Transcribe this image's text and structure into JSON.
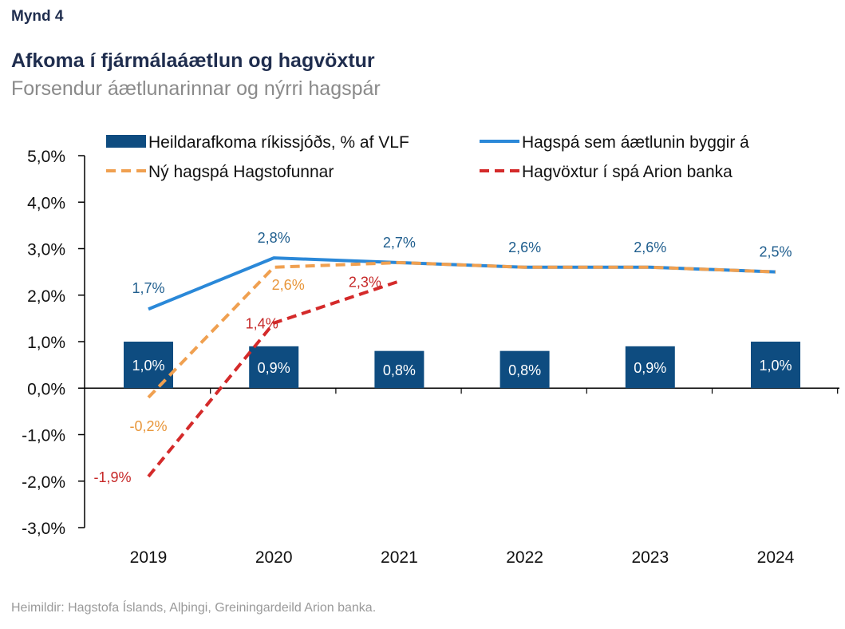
{
  "header": {
    "figure_label": "Mynd 4",
    "title": "Afkoma í fjármálaáætlun og hagvöxtur",
    "subtitle": "Forsendur áætlunarinnar og nýrri hagspár"
  },
  "footer": {
    "source": "Heimildir: Hagstofa Íslands, Alþingi, Greiningardeild Arion banka."
  },
  "chart_data": {
    "type": "bar",
    "title": "Afkoma í fjármálaáætlun og hagvöxtur",
    "subtitle": "Forsendur áætlunarinnar og nýrri hagspár",
    "categories": [
      "2019",
      "2020",
      "2021",
      "2022",
      "2023",
      "2024"
    ],
    "ylim": [
      -3.0,
      5.0
    ],
    "yticks": [
      "5,0%",
      "4,0%",
      "3,0%",
      "2,0%",
      "1,0%",
      "0,0%",
      "-1,0%",
      "-2,0%",
      "-3,0%"
    ],
    "ytick_values": [
      5,
      4,
      3,
      2,
      1,
      0,
      -1,
      -2,
      -3
    ],
    "legend_position": "top",
    "grid": false,
    "series": [
      {
        "name": "Heildarafkoma ríkissjóðs, % af VLF",
        "kind": "bar",
        "color": "#0e4c80",
        "values": [
          1.0,
          0.9,
          0.8,
          0.8,
          0.9,
          1.0
        ],
        "labels": [
          "1,0%",
          "0,9%",
          "0,8%",
          "0,8%",
          "0,9%",
          "1,0%"
        ]
      },
      {
        "name": "Hagspá sem áætlunin byggir á",
        "kind": "line",
        "style": "solid",
        "color": "#2a88d8",
        "label_color": "#1f5e8e",
        "values": [
          1.7,
          2.8,
          2.7,
          2.6,
          2.6,
          2.5
        ],
        "labels": [
          "1,7%",
          "2,8%",
          "2,7%",
          "2,6%",
          "2,6%",
          "2,5%"
        ]
      },
      {
        "name": "Ný hagspá Hagstofunnar",
        "kind": "line",
        "style": "dashed",
        "color": "#f0a050",
        "label_color": "#e8963a",
        "values": [
          -0.2,
          2.6,
          2.7,
          2.6,
          2.6,
          2.5
        ],
        "labels": [
          "-0,2%",
          "2,6%",
          "",
          "",
          "",
          ""
        ]
      },
      {
        "name": "Hagvöxtur í spá Arion banka",
        "kind": "line",
        "style": "dashed",
        "color": "#d42a2a",
        "label_color": "#c62828",
        "values": [
          -1.9,
          1.4,
          2.3,
          null,
          null,
          null
        ],
        "labels": [
          "-1,9%",
          "1,4%",
          "2,3%",
          "",
          "",
          ""
        ]
      }
    ]
  }
}
